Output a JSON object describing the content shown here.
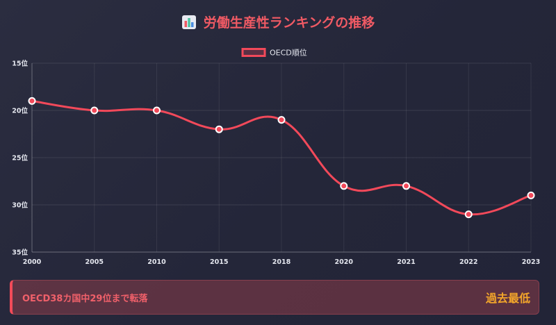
{
  "title": {
    "text": "労働生産性ランキングの推移",
    "icon": "bar-chart-icon"
  },
  "chart_data": {
    "type": "line",
    "categories": [
      "2000",
      "2005",
      "2010",
      "2015",
      "2018",
      "2020",
      "2021",
      "2022",
      "2023"
    ],
    "series": [
      {
        "name": "OECD順位",
        "values": [
          19,
          20,
          20,
          22,
          21,
          28,
          28,
          31,
          29
        ],
        "color": "#f2495a"
      }
    ],
    "ylim": [
      15,
      35
    ],
    "y_reversed": true,
    "y_ticks": [
      15,
      20,
      25,
      30,
      35
    ],
    "y_tick_labels": [
      "15位",
      "20位",
      "25位",
      "30位",
      "35位"
    ],
    "grid": true,
    "legend": "top-center"
  },
  "banner": {
    "text": "OECD38カ国中29位まで転落",
    "badge": "過去最低",
    "accent": "#f24b59",
    "badge_color": "#f3a62a"
  }
}
